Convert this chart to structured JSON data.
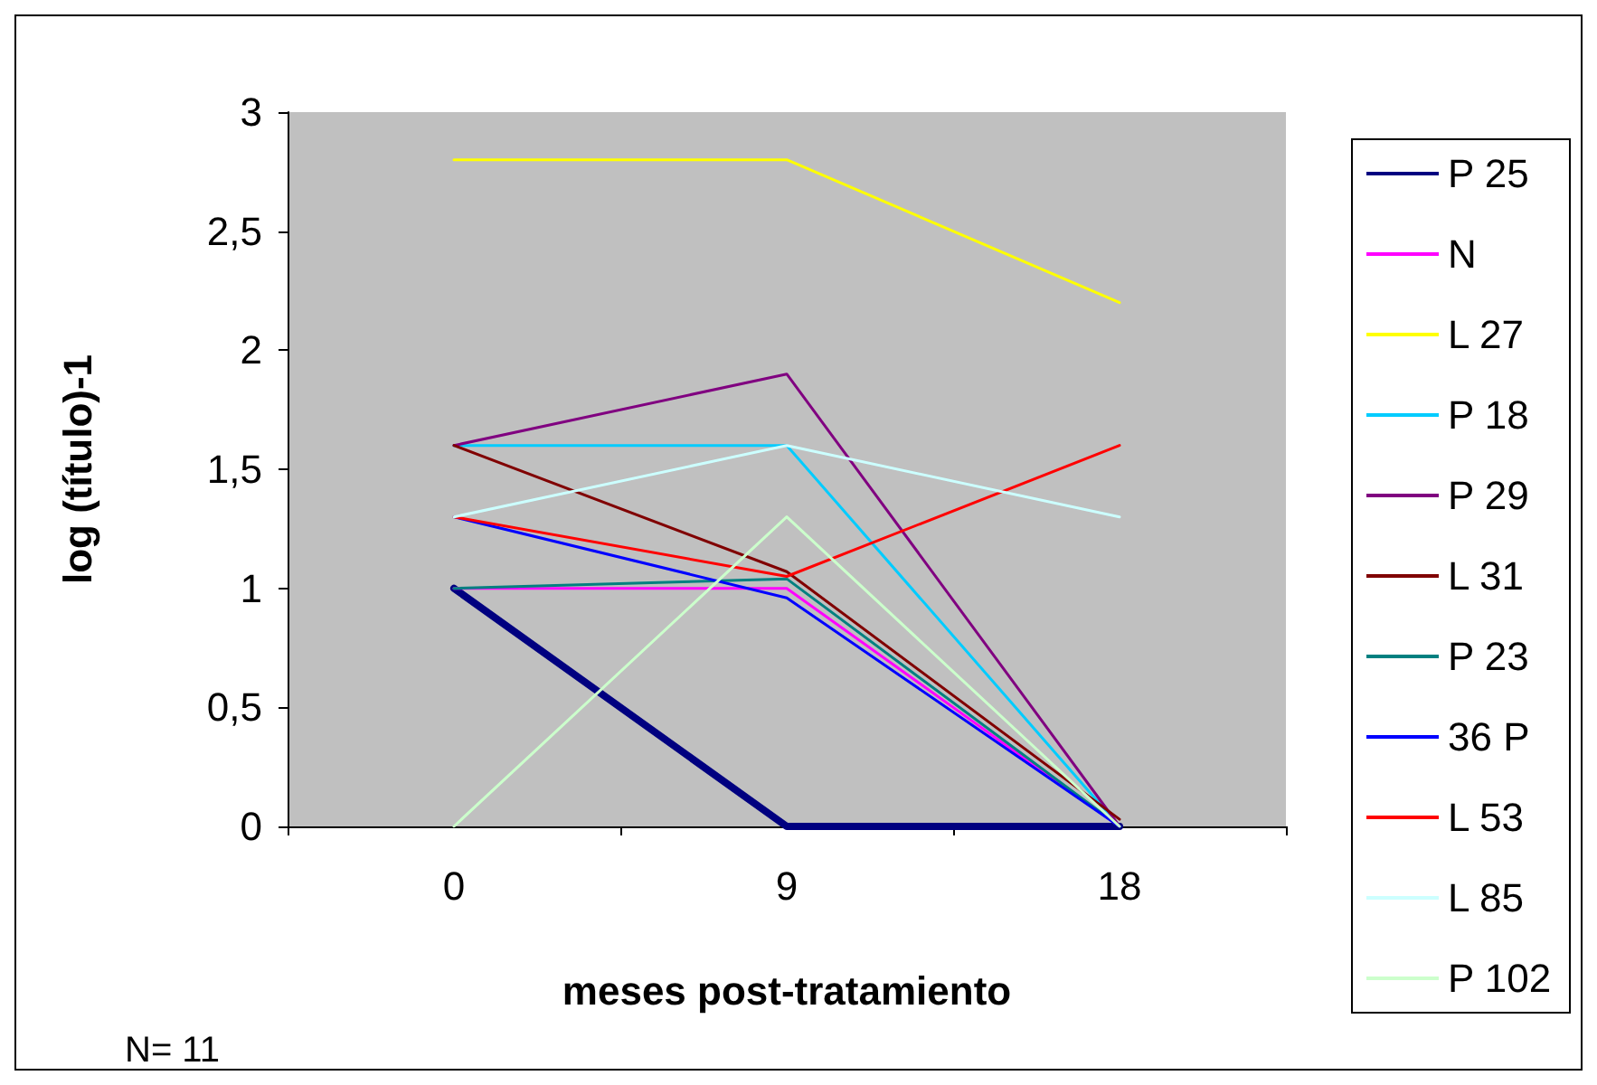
{
  "chart_data": {
    "type": "line",
    "xlabel": "meses post-tratamiento",
    "ylabel": "log (título)-1",
    "categories": [
      "0",
      "9",
      "18"
    ],
    "ylim": [
      0,
      3
    ],
    "yticks": [
      0,
      {
        "value": 0.5,
        "label": "0,5"
      },
      1,
      {
        "value": 1.5,
        "label": "1,5"
      },
      2,
      {
        "value": 2.5,
        "label": "2,5"
      },
      3
    ],
    "grid": false,
    "legend": "right",
    "marker": "none",
    "line_style": "solid",
    "annotations": [
      "N= 11"
    ],
    "series": [
      {
        "name": "P 25",
        "color": "#000080",
        "values": [
          1,
          0,
          0
        ]
      },
      {
        "name": "N",
        "color": "#ff00ff",
        "values": [
          1,
          1,
          0
        ]
      },
      {
        "name": "L 27",
        "color": "#ffff00",
        "values": [
          2.8,
          2.8,
          2.2
        ]
      },
      {
        "name": "P 18",
        "color": "#00ccff",
        "values": [
          1.6,
          1.6,
          0
        ]
      },
      {
        "name": "P 29",
        "color": "#800080",
        "values": [
          1.6,
          1.9,
          0
        ]
      },
      {
        "name": "L 31",
        "color": "#800000",
        "values": [
          1.6,
          1.07,
          0.03
        ]
      },
      {
        "name": "P 23",
        "color": "#008080",
        "values": [
          1,
          1.04,
          0
        ]
      },
      {
        "name": "36 P",
        "color": "#0000ff",
        "values": [
          1.3,
          0.96,
          0
        ]
      },
      {
        "name": "L 53",
        "color": "#ff0000",
        "values": [
          1.3,
          1.05,
          1.6
        ]
      },
      {
        "name": "L 85",
        "color": "#ccffff",
        "values": [
          1.3,
          1.6,
          1.3
        ]
      },
      {
        "name": "P 102",
        "color": "#ccffcc",
        "values": [
          0,
          1.3,
          0
        ]
      }
    ]
  }
}
